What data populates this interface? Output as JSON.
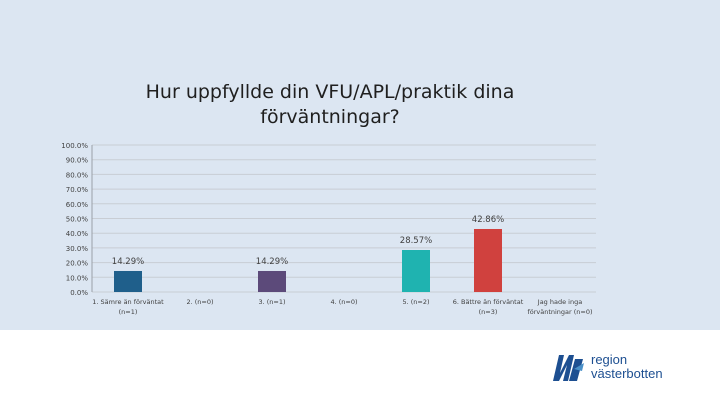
{
  "chart_data": {
    "type": "bar",
    "title": "Hur uppfyllde din VFU/APL/praktik dina förväntningar?",
    "title_lines": [
      "Hur uppfyllde din VFU/APL/praktik dina",
      "förväntningar?"
    ],
    "categories": [
      [
        "1. Sämre än förväntat",
        "(n=1)"
      ],
      [
        "2. (n=0)"
      ],
      [
        "3. (n=1)"
      ],
      [
        "4. (n=0)"
      ],
      [
        "5. (n=2)"
      ],
      [
        "6. Bättre än förväntat",
        "(n=3)"
      ],
      [
        "Jag hade inga",
        "förväntningar (n=0)"
      ]
    ],
    "values": [
      14.29,
      0,
      14.29,
      0,
      28.57,
      42.86,
      0
    ],
    "data_labels": [
      "14.29%",
      "",
      "14.29%",
      "",
      "28.57%",
      "42.86%",
      ""
    ],
    "bar_colors": [
      "#1f5f8b",
      "#1f5f8b",
      "#5c4a7a",
      "#5c4a7a",
      "#1fb3b0",
      "#d0413e",
      "#d0413e"
    ],
    "yticks": [
      "0.0%",
      "10.0%",
      "20.0%",
      "30.0%",
      "40.0%",
      "50.0%",
      "60.0%",
      "70.0%",
      "80.0%",
      "90.0%",
      "100.0%"
    ],
    "ylim": [
      0,
      100
    ],
    "grid": true,
    "legend": "none"
  },
  "logo": {
    "line1": "region",
    "line2": "västerbotten",
    "color": "#1d4f91"
  }
}
